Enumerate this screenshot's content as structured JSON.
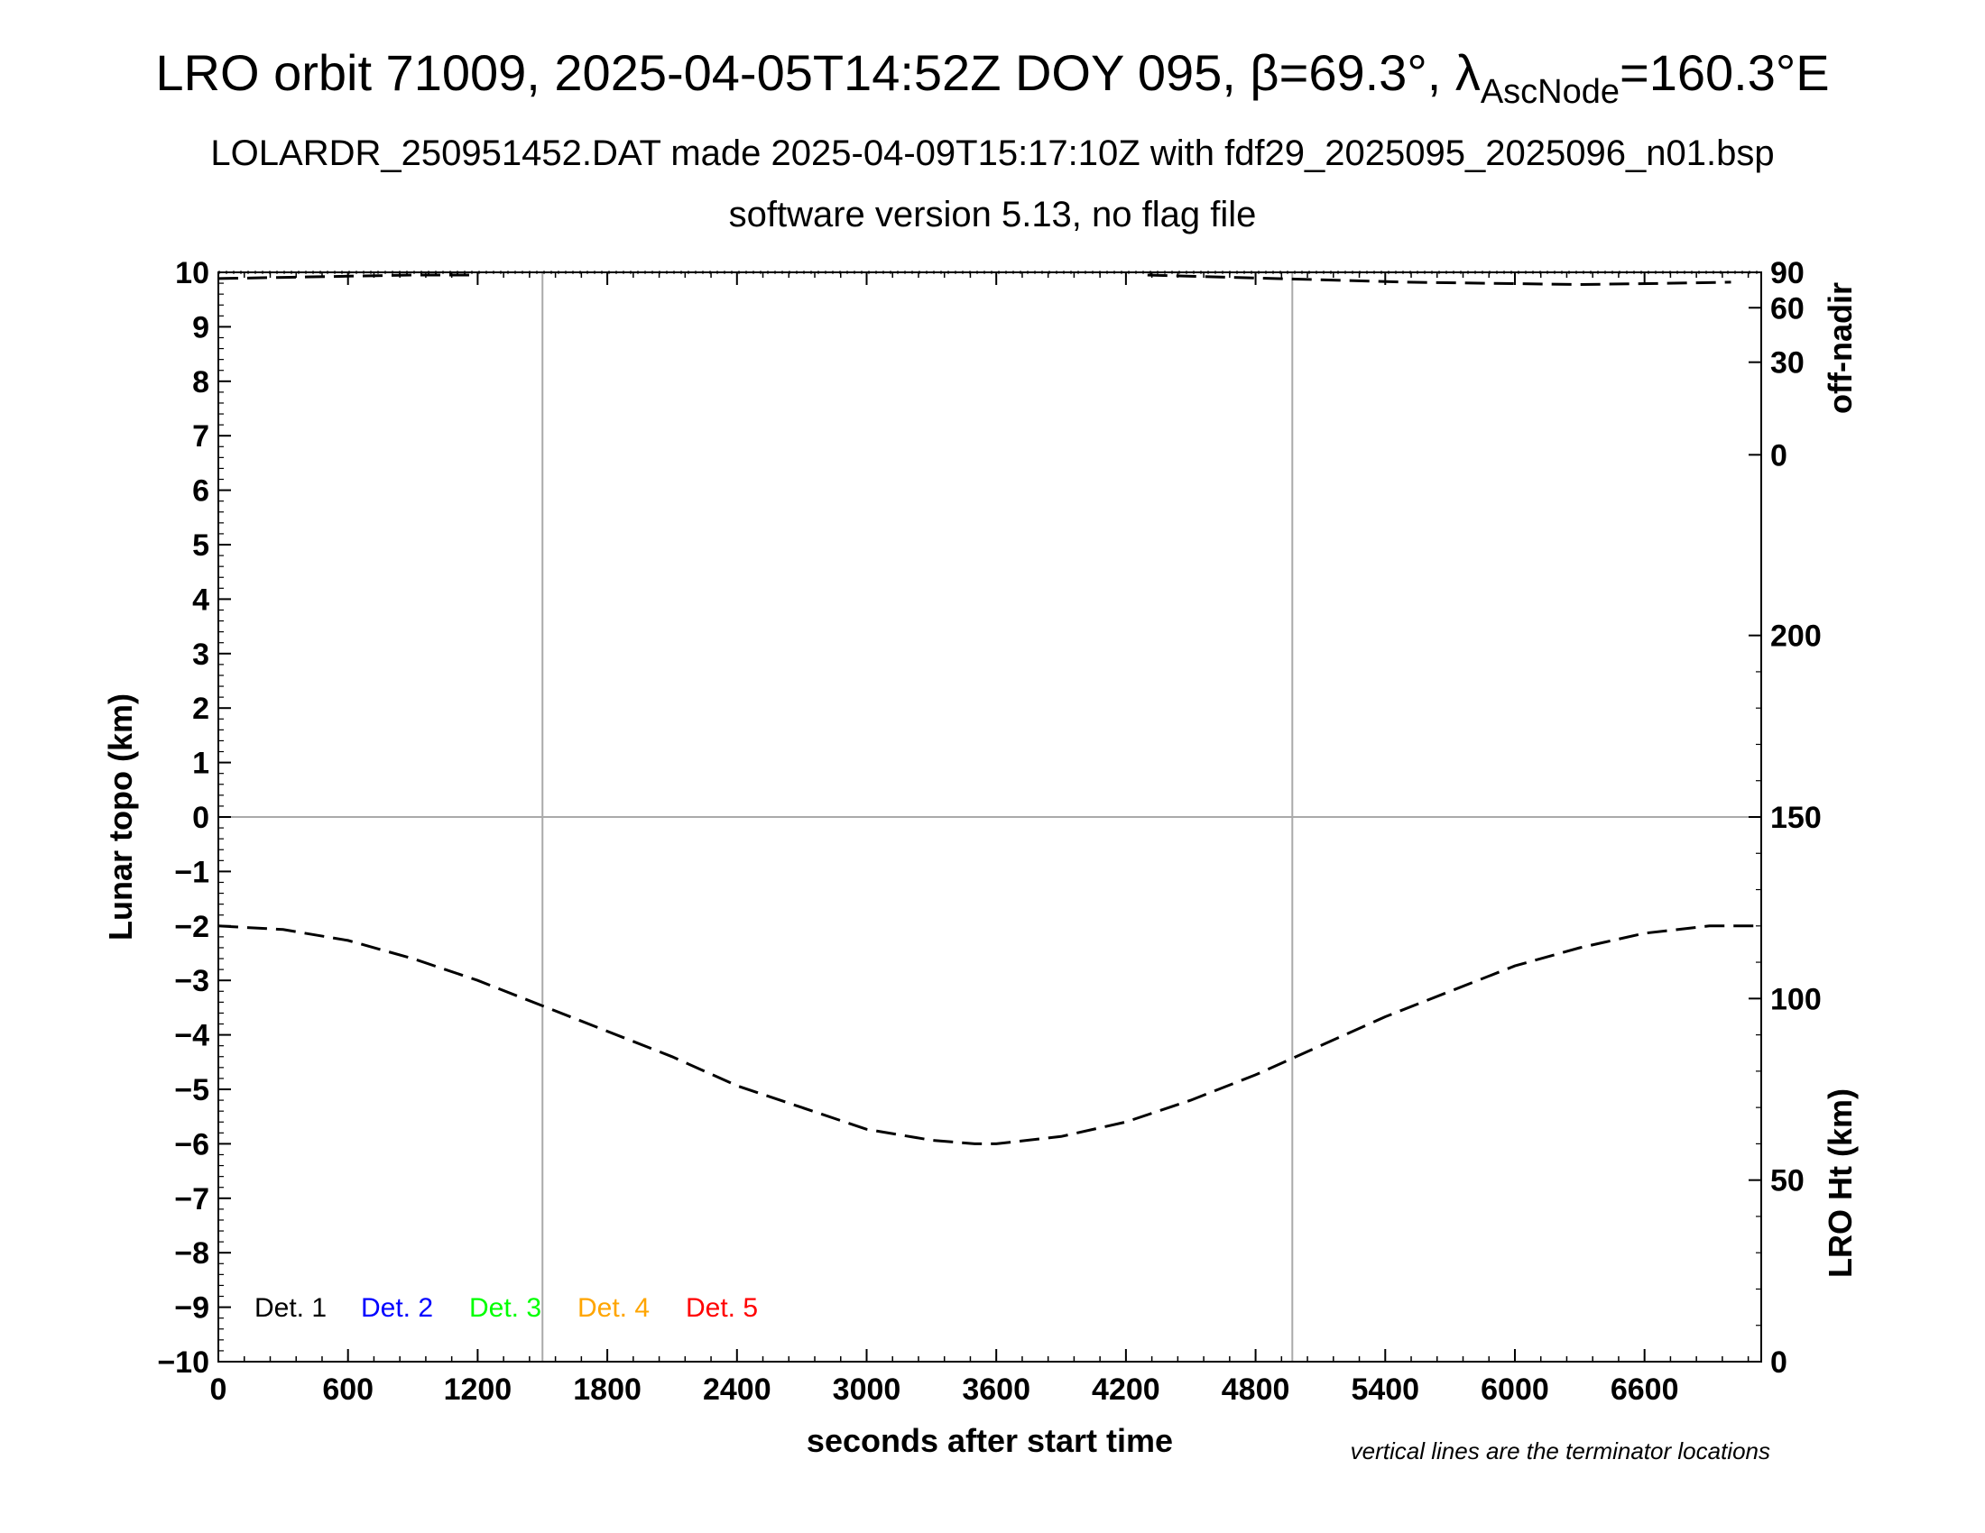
{
  "title": {
    "main": "LRO orbit 71009, 2025-04-05T14:52Z DOY 095, β=69.3°, λ",
    "subscript": "AscNode",
    "tail": "=160.3°E"
  },
  "subtitle1": "LOLARDR_250951452.DAT made 2025-04-09T15:17:10Z with fdf29_2025095_2025096_n01.bsp",
  "subtitle2": "software version 5.13, no flag file",
  "note": "vertical lines are the terminator locations",
  "colors": {
    "det1": "#000000",
    "det2": "#0000ff",
    "det3": "#00ff00",
    "det4": "#ffa500",
    "det5": "#ff0000",
    "grid": "#aaaaaa"
  },
  "chart_data": {
    "type": "line",
    "xlabel": "seconds after start time",
    "ylabel": "Lunar topo (km)",
    "xlim": [
      0,
      7140
    ],
    "ylim": [
      -10,
      10
    ],
    "x_ticks": [
      "0",
      "600",
      "1200",
      "1800",
      "2400",
      "3000",
      "3600",
      "4200",
      "4800",
      "5400",
      "6000",
      "6600"
    ],
    "x_tick_values": [
      0,
      600,
      1200,
      1800,
      2400,
      3000,
      3600,
      4200,
      4800,
      5400,
      6000,
      6600
    ],
    "y_ticks": [
      "10",
      "9",
      "8",
      "7",
      "6",
      "5",
      "4",
      "3",
      "2",
      "1",
      "0",
      "−1",
      "−2",
      "−3",
      "−4",
      "−5",
      "−6",
      "−7",
      "−8",
      "−9",
      "−10"
    ],
    "y_tick_values": [
      10,
      9,
      8,
      7,
      6,
      5,
      4,
      3,
      2,
      1,
      0,
      -1,
      -2,
      -3,
      -4,
      -5,
      -6,
      -7,
      -8,
      -9,
      -10
    ],
    "terminator_seconds": [
      1500,
      4970
    ],
    "right_axis_offnadir": {
      "label": "off-nadir",
      "ticks": [
        "90",
        "60",
        "30",
        "0"
      ],
      "tick_values": [
        90,
        60,
        30,
        0
      ],
      "tick_y_topo": [
        10,
        9.35,
        8.35,
        6.65
      ]
    },
    "right_axis_height": {
      "label": "LRO Ht (km)",
      "ticks": [
        "200",
        "150",
        "100",
        "50",
        "0"
      ],
      "tick_values": [
        200,
        150,
        100,
        50,
        0
      ],
      "ylim": [
        0,
        300
      ]
    },
    "legend": [
      "Det. 1",
      "Det. 2",
      "Det. 3",
      "Det. 4",
      "Det. 5"
    ],
    "legend_placement": "bottom-left",
    "grid": "terminator lines and zero line only",
    "series": [
      {
        "name": "LRO Ht (km)",
        "style": "dashed",
        "x": [
          0,
          300,
          600,
          900,
          1200,
          1500,
          1800,
          2100,
          2400,
          2700,
          3000,
          3300,
          3500,
          3600,
          3900,
          4200,
          4500,
          4800,
          5100,
          5400,
          5700,
          6000,
          6300,
          6600,
          6900,
          7140
        ],
        "values": [
          120,
          119,
          116,
          111,
          105,
          98,
          91,
          84,
          76,
          70,
          64,
          61,
          60,
          60,
          62,
          66,
          72,
          79,
          87,
          95,
          102,
          109,
          114,
          118,
          120,
          120
        ]
      },
      {
        "name": "off-nadir",
        "style": "dashed",
        "x": [
          0,
          300,
          600,
          900,
          1200,
          4300,
          4700,
          5100,
          5500,
          5900,
          6300,
          6700,
          7000
        ],
        "values": [
          87,
          88,
          89,
          90,
          90,
          90,
          88,
          86,
          84,
          83,
          82,
          83,
          84
        ]
      }
    ]
  }
}
